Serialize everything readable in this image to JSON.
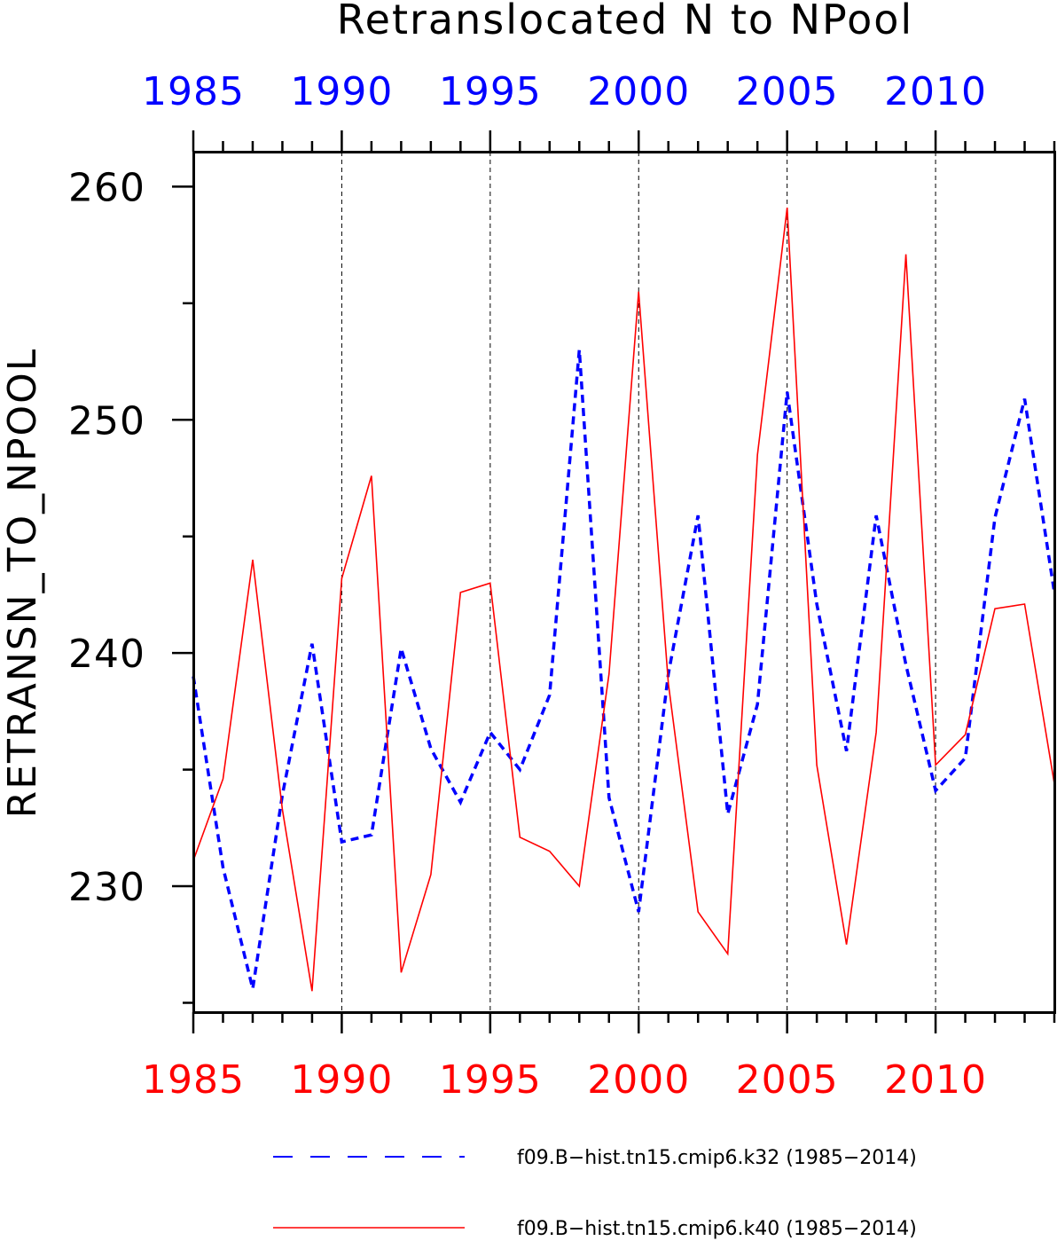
{
  "chart_data": {
    "type": "line",
    "title": "Retranslocated N to NPool",
    "ylabel": "RETRANSN_TO_NPOOL",
    "xlabel": "",
    "xlim": [
      1985,
      2014
    ],
    "ylim": [
      224.6,
      261.5
    ],
    "x_ticks": [
      1985,
      1990,
      1995,
      2000,
      2005,
      2010
    ],
    "y_ticks": [
      230,
      240,
      250,
      260
    ],
    "grid": "vertical dashed lines at labeled x ticks",
    "top_axis_color": "#0000ff",
    "bottom_axis_color": "#ff0000",
    "legend_position": "bottom",
    "x": [
      1985,
      1986,
      1987,
      1988,
      1989,
      1990,
      1991,
      1992,
      1993,
      1994,
      1995,
      1996,
      1997,
      1998,
      1999,
      2000,
      2001,
      2002,
      2003,
      2004,
      2005,
      2006,
      2007,
      2008,
      2009,
      2010,
      2011,
      2012,
      2013,
      2014
    ],
    "series": [
      {
        "name": "f09.B−hist.tn15.cmip6.k32 (1985−2014)",
        "color": "#0000ff",
        "style": "dashed",
        "values": [
          239.0,
          230.8,
          225.6,
          233.9,
          240.4,
          231.9,
          232.2,
          240.2,
          235.9,
          233.6,
          236.6,
          235.0,
          238.2,
          253.0,
          233.8,
          228.9,
          239.1,
          245.9,
          233.1,
          237.8,
          251.2,
          242.1,
          235.8,
          245.9,
          239.5,
          234.1,
          235.5,
          245.8,
          250.9,
          242.6
        ]
      },
      {
        "name": "f09.B−hist.tn15.cmip6.k40 (1985−2014)",
        "color": "#ff0000",
        "style": "solid",
        "values": [
          231.1,
          234.6,
          244.0,
          233.3,
          225.5,
          243.2,
          247.6,
          226.3,
          230.5,
          242.6,
          243.0,
          232.1,
          231.5,
          230.0,
          239.1,
          255.5,
          238.7,
          228.9,
          227.1,
          248.5,
          259.1,
          235.2,
          227.5,
          236.6,
          257.1,
          235.2,
          236.5,
          241.9,
          242.1,
          234.4
        ]
      }
    ]
  }
}
